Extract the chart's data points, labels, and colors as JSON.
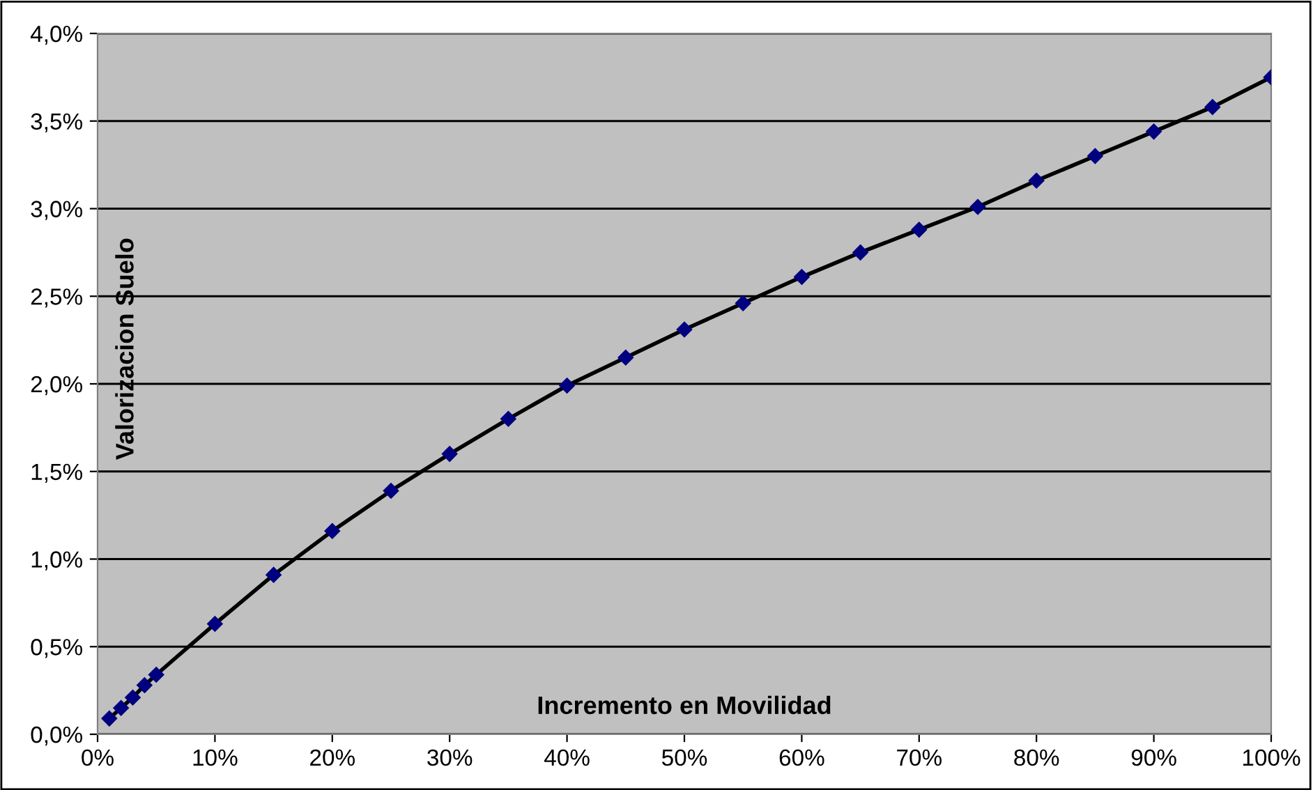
{
  "chart_data": {
    "type": "line",
    "xlabel": "Incremento en Movilidad",
    "ylabel": "Valorizacion Suelo",
    "x": [
      1,
      2,
      3,
      4,
      5,
      10,
      15,
      20,
      25,
      30,
      35,
      40,
      45,
      50,
      55,
      60,
      65,
      70,
      75,
      80,
      85,
      90,
      95,
      100
    ],
    "series": [
      {
        "color": "#000080",
        "values": [
          0.09,
          0.15,
          0.21,
          0.28,
          0.34,
          0.63,
          0.91,
          1.16,
          1.39,
          1.6,
          1.8,
          1.99,
          2.15,
          2.31,
          2.46,
          2.61,
          2.75,
          2.88,
          3.01,
          3.16,
          3.3,
          3.44,
          3.58,
          3.75
        ]
      }
    ],
    "xlim": [
      0,
      100
    ],
    "xticks": [
      {
        "value": 0,
        "label": "0%"
      },
      {
        "value": 10,
        "label": "10%"
      },
      {
        "value": 20,
        "label": "20%"
      },
      {
        "value": 30,
        "label": "30%"
      },
      {
        "value": 40,
        "label": "40%"
      },
      {
        "value": 50,
        "label": "50%"
      },
      {
        "value": 60,
        "label": "60%"
      },
      {
        "value": 70,
        "label": "70%"
      },
      {
        "value": 80,
        "label": "80%"
      },
      {
        "value": 90,
        "label": "90%"
      },
      {
        "value": 100,
        "label": "100%"
      }
    ],
    "ylim": [
      0,
      4
    ],
    "yticks": [
      {
        "value": 0,
        "label": "0,0%"
      },
      {
        "value": 0.5,
        "label": "0,5%"
      },
      {
        "value": 1,
        "label": "1,0%"
      },
      {
        "value": 1.5,
        "label": "1,5%"
      },
      {
        "value": 2,
        "label": "2,0%"
      },
      {
        "value": 2.5,
        "label": "2,5%"
      },
      {
        "value": 3,
        "label": "3,0%"
      },
      {
        "value": 3.5,
        "label": "3,5%"
      },
      {
        "value": 4,
        "label": "4,0%"
      }
    ],
    "grid": "y",
    "marker": "diamond",
    "line_style": "solid"
  }
}
